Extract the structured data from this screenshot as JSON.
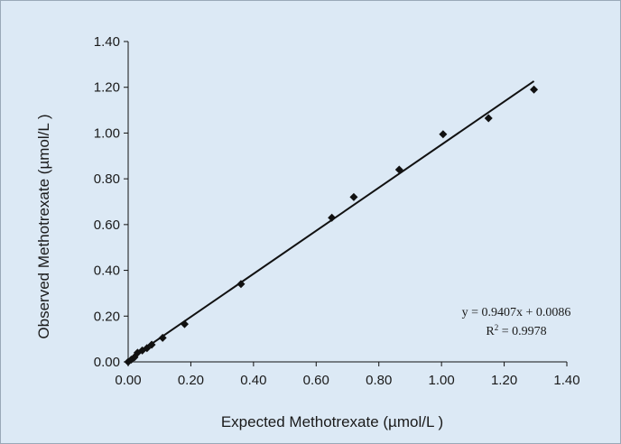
{
  "chart_data": {
    "type": "scatter",
    "xlabel": "Expected  Methotrexate (µmol/L )",
    "ylabel": "Observed Methotrexate (µmol/L )",
    "xlim": [
      0,
      1.4
    ],
    "ylim": [
      0,
      1.4
    ],
    "x_ticks": [
      "0.00",
      "0.20",
      "0.40",
      "0.60",
      "0.80",
      "1.00",
      "1.20",
      "1.40"
    ],
    "y_ticks": [
      "0.00",
      "0.20",
      "0.40",
      "0.60",
      "0.80",
      "1.00",
      "1.20",
      "1.40"
    ],
    "grid": false,
    "series": [
      {
        "marker": "diamond",
        "color": "#111111",
        "points": [
          {
            "x": 0.0,
            "y": 0.0
          },
          {
            "x": 0.01,
            "y": 0.01
          },
          {
            "x": 0.02,
            "y": 0.02
          },
          {
            "x": 0.03,
            "y": 0.04
          },
          {
            "x": 0.045,
            "y": 0.05
          },
          {
            "x": 0.06,
            "y": 0.06
          },
          {
            "x": 0.075,
            "y": 0.075
          },
          {
            "x": 0.11,
            "y": 0.105
          },
          {
            "x": 0.18,
            "y": 0.165
          },
          {
            "x": 0.36,
            "y": 0.34
          },
          {
            "x": 0.65,
            "y": 0.63
          },
          {
            "x": 0.72,
            "y": 0.72
          },
          {
            "x": 0.865,
            "y": 0.84
          },
          {
            "x": 1.005,
            "y": 0.995
          },
          {
            "x": 1.15,
            "y": 1.065
          },
          {
            "x": 1.295,
            "y": 1.19
          }
        ]
      }
    ],
    "trendline": {
      "slope": 0.9407,
      "intercept": 0.0086,
      "x_range": [
        0,
        1.295
      ],
      "color": "#111111"
    },
    "annotations": {
      "equation": "y = 0.9407x + 0.0086",
      "r2_prefix": "R",
      "r2_sup": "2",
      "r2_value": " = 0.9978"
    },
    "colors": {
      "background": "#dce9f5",
      "border": "#9aa9b8",
      "axis": "#111111"
    }
  }
}
